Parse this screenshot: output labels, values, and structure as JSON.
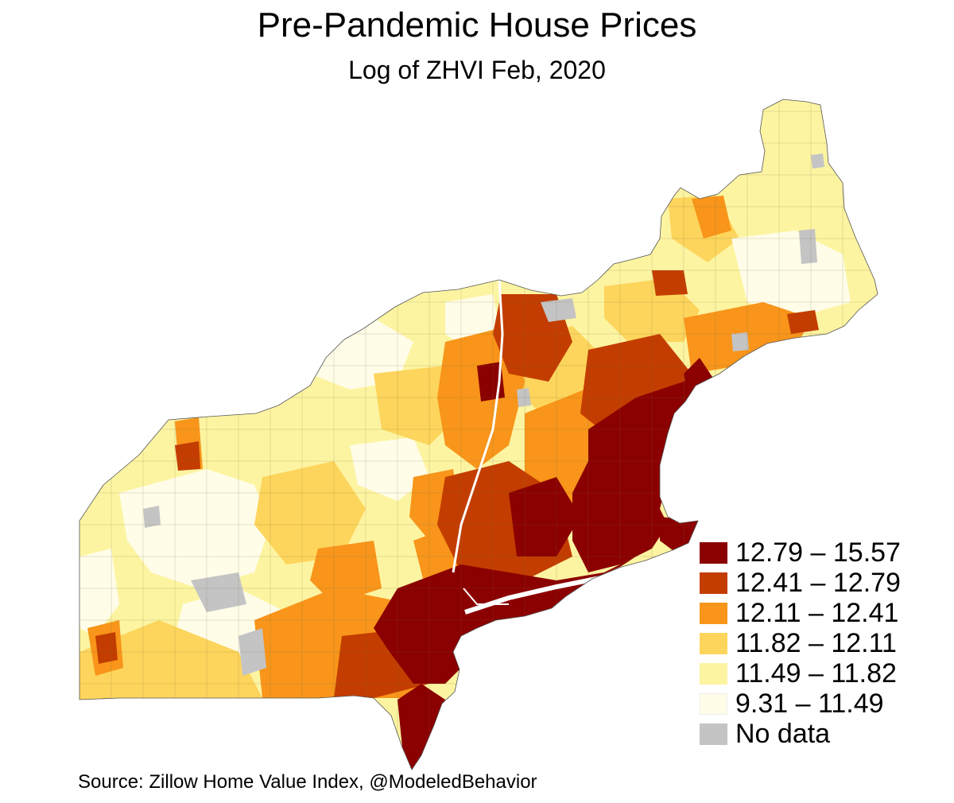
{
  "title": "Pre-Pandemic House Prices",
  "subtitle": "Log of ZHVI Feb, 2020",
  "legend": {
    "items": [
      {
        "label": "12.79 – 15.57",
        "color": "#8b0000"
      },
      {
        "label": "12.41 – 12.79",
        "color": "#c33d00"
      },
      {
        "label": "12.11 – 12.41",
        "color": "#f8951a"
      },
      {
        "label": "11.82 – 12.11",
        "color": "#fdd55c"
      },
      {
        "label": "11.49 – 11.82",
        "color": "#fdf4a2"
      },
      {
        "label": "9.31 – 11.49",
        "color": "#fffde8"
      },
      {
        "label": "No data",
        "color": "#c4c4c4"
      }
    ]
  },
  "source": "Source: Zillow Home Value Index, @ModeledBehavior"
}
